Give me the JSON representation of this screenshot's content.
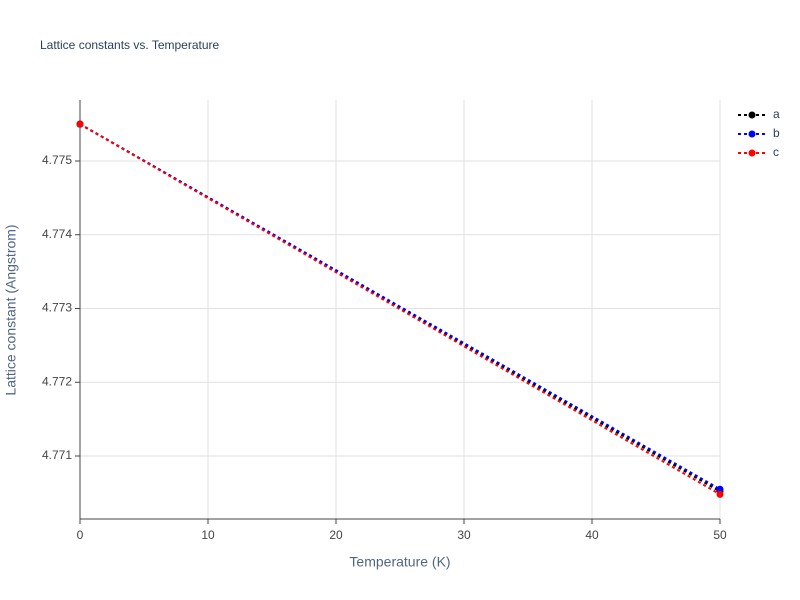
{
  "chart_data": {
    "type": "line",
    "title": "Lattice constants vs. Temperature",
    "x_label": "Temperature (K)",
    "y_label": "Lattice constant (Angstrom)",
    "x": [
      0,
      50
    ],
    "series": [
      {
        "name": "a",
        "color": "#000000",
        "values": [
          4.7755,
          4.77052
        ]
      },
      {
        "name": "b",
        "color": "#0000ff",
        "values": [
          4.7755,
          4.77055
        ]
      },
      {
        "name": "c",
        "color": "#ff0000",
        "values": [
          4.7755,
          4.77048
        ]
      }
    ],
    "xlim": [
      0,
      50
    ],
    "xticks": [
      0,
      10,
      20,
      30,
      40,
      50
    ],
    "ylim": [
      4.770146,
      4.775827
    ],
    "yticks": [
      {
        "value": 4.771,
        "label": "4.771"
      },
      {
        "value": 4.772,
        "label": "4.772"
      },
      {
        "value": 4.773,
        "label": "4.773"
      },
      {
        "value": 4.774,
        "label": "4.774"
      },
      {
        "value": 4.775,
        "label": "4.775"
      }
    ],
    "grid": true,
    "legend": "top-right"
  }
}
